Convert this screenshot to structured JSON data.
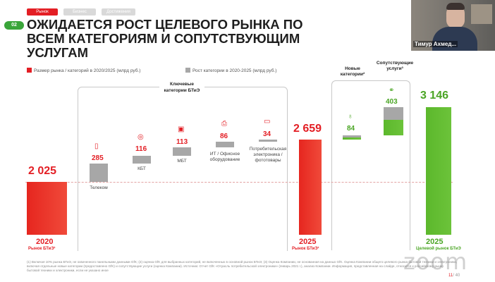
{
  "nav": {
    "tabs": [
      "Рынок",
      "Бизнес",
      "Достижения"
    ]
  },
  "slide": {
    "number_badge": "02",
    "title": "ОЖИДАЕТСЯ РОСТ ЦЕЛЕВОГО РЫНКА ПО ВСЕМ КАТЕГОРИЯМ И СОПУТСТВУЮЩИМ УСЛУГАМ",
    "page_number": "11",
    "page_total": "/ 40"
  },
  "legend": {
    "red_label": "Размер рынка / категорий в 2020/2025 (млрд руб.)",
    "grey_label": "Рост категории в 2020-2025 (млрд руб.)"
  },
  "colors": {
    "red": "#e31e24",
    "grey": "#a7a7a7",
    "green": "#5cb82c",
    "badge": "#3aa53a"
  },
  "groups": {
    "key_categories": "Ключевые категории БТиЭ",
    "new_categories": "Новые категории²",
    "services": "Сопутствующие услуги³"
  },
  "chart_data": {
    "type": "bar",
    "subtype": "waterfall",
    "categories": [
      "2020",
      "Телеком",
      "КБТ",
      "МБТ",
      "ИТ / Офисное оборудование",
      "Потребительская электроника / фототовары",
      "2025",
      "Новые категории",
      "Сопутствующие услуги",
      "2025"
    ],
    "values": [
      2025,
      285,
      116,
      113,
      86,
      34,
      2659,
      84,
      403,
      3146
    ],
    "value_labels": [
      "2 025",
      "285",
      "116",
      "113",
      "86",
      "34",
      "2 659",
      "84",
      "403",
      "3 146"
    ],
    "series_colors": [
      "red",
      "grey",
      "grey",
      "grey",
      "grey",
      "grey",
      "red",
      "grey/green",
      "grey/green",
      "green"
    ],
    "bottom_labels": [
      {
        "year": "2020",
        "sub": "Рынок БТиЭ¹"
      },
      {
        "year": "2025",
        "sub": "Рынок БТиЭ¹"
      },
      {
        "year": "2025",
        "sub": "Целевой рынок БТиЭ"
      }
    ]
  },
  "icons": [
    "smartphone-icon",
    "washing-machine-icon",
    "kettle-icon",
    "printer-icon",
    "tv-icon",
    "lightbulb-icon",
    "handshake-icon"
  ],
  "footnote": "(1) Включая 10% рынка БТиЭ, не охваченного панельными данными GfK; (2) оценка GfK для выбранных категорий, не включенных в основной рынок БТиЭ; (3) Оценка Компании, не основанная на данных GfK. Оценка Компании общего целевого рынка бытовой техники и электроники, включая отдельные новые категории (предоставлено GfK) и сопутствующие услуги (оценка Компании). Источник: Отчет GfK «Отрасль потребительской электроники» (январь 2021 г.), анализ Компании. Информация, представленная на слайде, относится к российскому рынку бытовой техники и электроники, если не указано иное",
  "video": {
    "participant_name": "Тимур Ахмед..."
  },
  "watermark": "zoom"
}
